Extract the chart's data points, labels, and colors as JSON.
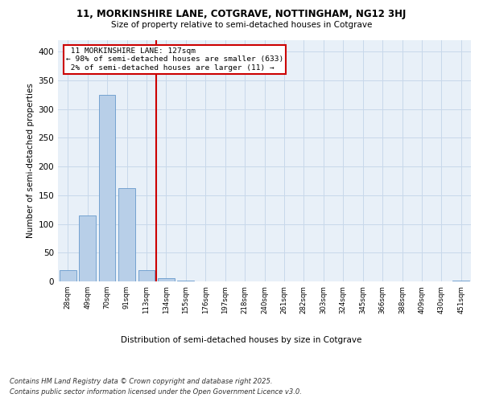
{
  "title_line1": "11, MORKINSHIRE LANE, COTGRAVE, NOTTINGHAM, NG12 3HJ",
  "title_line2": "Size of property relative to semi-detached houses in Cotgrave",
  "xlabel": "Distribution of semi-detached houses by size in Cotgrave",
  "ylabel": "Number of semi-detached properties",
  "categories": [
    "28sqm",
    "49sqm",
    "70sqm",
    "91sqm",
    "113sqm",
    "134sqm",
    "155sqm",
    "176sqm",
    "197sqm",
    "218sqm",
    "240sqm",
    "261sqm",
    "282sqm",
    "303sqm",
    "324sqm",
    "345sqm",
    "366sqm",
    "388sqm",
    "409sqm",
    "430sqm",
    "451sqm"
  ],
  "values": [
    20,
    115,
    325,
    163,
    20,
    5,
    1,
    0,
    0,
    0,
    0,
    0,
    0,
    0,
    0,
    0,
    0,
    0,
    0,
    0,
    1
  ],
  "bar_color": "#b8cfe8",
  "bar_edge_color": "#6699cc",
  "vline_color": "#cc0000",
  "annotation_box_color": "#cc0000",
  "property_label": "11 MORKINSHIRE LANE: 127sqm",
  "smaller_pct": 98,
  "smaller_count": 633,
  "larger_pct": 2,
  "larger_count": 11,
  "ylim": [
    0,
    420
  ],
  "yticks": [
    0,
    50,
    100,
    150,
    200,
    250,
    300,
    350,
    400
  ],
  "grid_color": "#c8d8ea",
  "bg_color": "#e8f0f8",
  "footer1": "Contains HM Land Registry data © Crown copyright and database right 2025.",
  "footer2": "Contains public sector information licensed under the Open Government Licence v3.0."
}
